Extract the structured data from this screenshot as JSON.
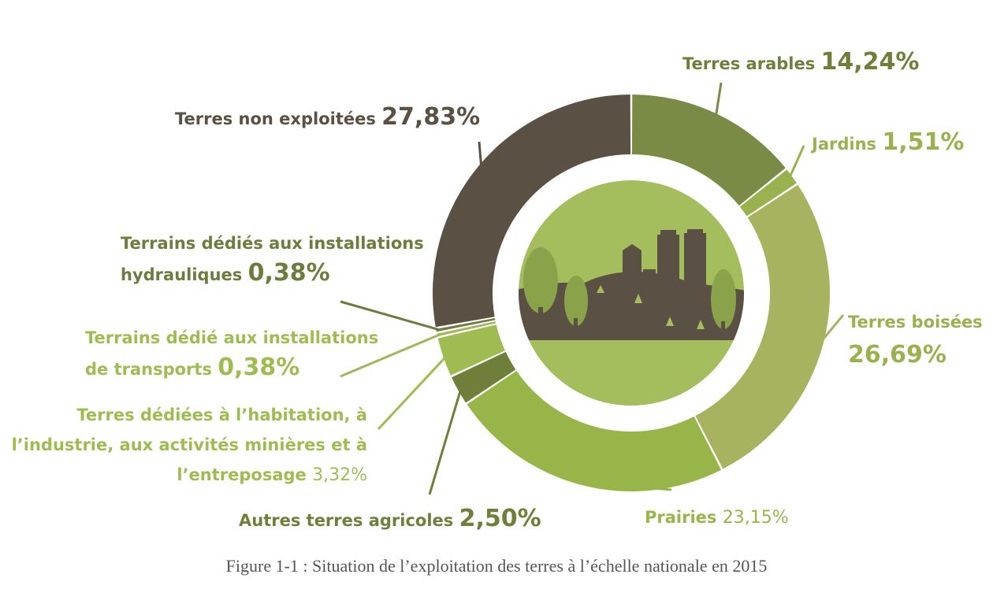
{
  "chart_data": {
    "type": "pie",
    "variant": "donut",
    "legend": "none",
    "slices": [
      {
        "label": "Terres arables",
        "value": 14.24,
        "value_label": "14,24%",
        "color": "#7a8b45"
      },
      {
        "label": "Jardins",
        "value": 1.51,
        "value_label": "1,51%",
        "color": "#9ab14f"
      },
      {
        "label": "Terres boisées",
        "value": 26.69,
        "value_label": "26,69%",
        "color": "#a7b35e"
      },
      {
        "label": "Prairies",
        "value": 23.15,
        "value_label": "23,15%",
        "color": "#98b54a"
      },
      {
        "label": "Autres terres agricoles",
        "value": 2.5,
        "value_label": "2,50%",
        "color": "#6f7f3a"
      },
      {
        "label": "Terres dédiées à l’habitation, à l’industrie, aux activités minières et à l’entreposage",
        "value": 3.32,
        "value_label": "3,32%",
        "color": "#9fbc52"
      },
      {
        "label": "Terrains dédié aux installations de transports",
        "value": 0.38,
        "value_label": "0,38%",
        "color": "#a4b35c"
      },
      {
        "label": "Terrains dédiés aux installations hydrauliques",
        "value": 0.38,
        "value_label": "0,38%",
        "color": "#6c7c3c"
      },
      {
        "label": "Terres non exploitées",
        "value": 27.83,
        "value_label": "27,83%",
        "color": "#5a5044"
      }
    ]
  },
  "labels": {
    "arables": {
      "text": "Terres arables",
      "pct": "14,24%"
    },
    "jardins": {
      "text": "Jardins",
      "pct": "1,51%"
    },
    "boisees": {
      "line1": "Terres boisées",
      "pct": "26,69%"
    },
    "prairies": {
      "text": "Prairies",
      "pct": "23,15%"
    },
    "autres": {
      "text": "Autres terres agricoles",
      "pct": "2,50%"
    },
    "habitation": {
      "line1": "Terres dédiées à l’habitation, à",
      "line2": "l’industrie, aux activités minières et à",
      "line3": "l’entreposage",
      "pct": "3,32%"
    },
    "transports": {
      "line1": "Terrains dédié aux installations",
      "line2": "de transports",
      "pct": "0,38%"
    },
    "hydrauliques": {
      "line1": "Terrains dédiés aux installations",
      "line2": "hydrauliques",
      "pct": "0,38%"
    },
    "non_exploitees": {
      "text": "Terres non exploitées",
      "pct": "27,83%"
    }
  },
  "caption": "Figure 1-1 : Situation de l’exploitation des terres à l’échelle nationale en 2015",
  "colors": {
    "dark_brown": "#5a5044",
    "olive": "#6f7f3a",
    "light_green": "#9fbc52",
    "center_disc": "#a4bd5d"
  }
}
